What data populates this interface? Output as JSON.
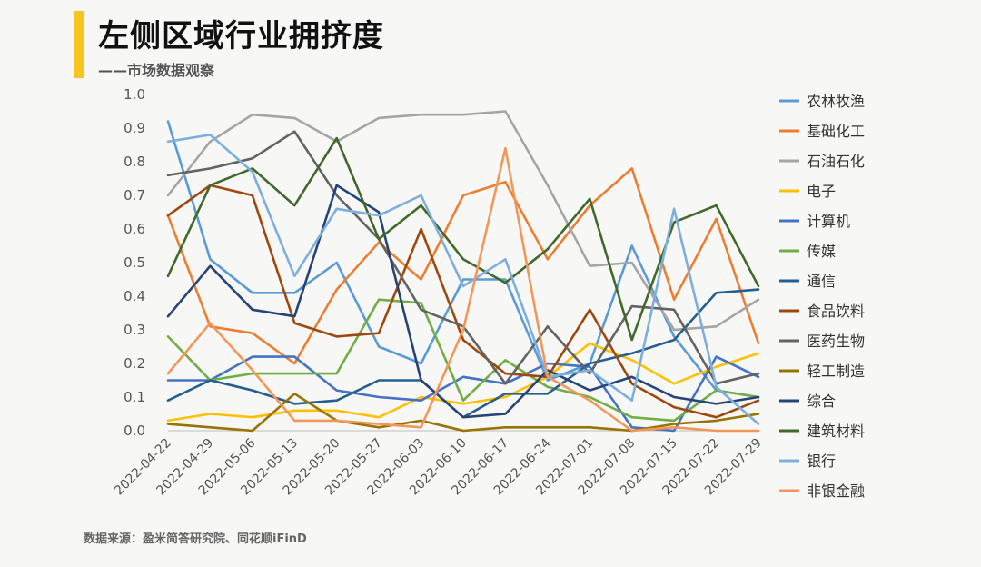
{
  "header": {
    "title": "左侧区域行业拥挤度",
    "subtitle": "——市场数据观察"
  },
  "footer": {
    "source": "数据来源：盈米简答研究院、同花顺iFinD"
  },
  "chart_data": {
    "type": "line",
    "title": "",
    "xlabel": "",
    "ylabel": "",
    "ylim": [
      0,
      1.0
    ],
    "yticks": [
      0.0,
      0.1,
      0.2,
      0.3,
      0.4,
      0.5,
      0.6,
      0.7,
      0.8,
      0.9,
      1.0
    ],
    "ytick_labels": [
      "0.0",
      "0.1",
      "0.2",
      "0.3",
      "0.4",
      "0.5",
      "0.6",
      "0.7",
      "0.8",
      "0.9",
      "1.0"
    ],
    "grid": false,
    "legend_position": "right",
    "categories": [
      "2022-04-22",
      "2022-04-29",
      "2022-05-06",
      "2022-05-13",
      "2022-05-20",
      "2022-05-27",
      "2022-06-03",
      "2022-06-10",
      "2022-06-17",
      "2022-06-24",
      "2022-07-01",
      "2022-07-08",
      "2022-07-15",
      "2022-07-22",
      "2022-07-29"
    ],
    "series": [
      {
        "name": "农林牧渔",
        "color": "#5b9bd5",
        "values": [
          0.92,
          0.51,
          0.41,
          0.41,
          0.5,
          0.25,
          0.2,
          0.45,
          0.45,
          0.15,
          0.2,
          0.55,
          0.28,
          0.12,
          0.1
        ]
      },
      {
        "name": "基础化工",
        "color": "#ed7d31",
        "values": [
          0.64,
          0.31,
          0.29,
          0.2,
          0.42,
          0.56,
          0.45,
          0.7,
          0.74,
          0.51,
          0.67,
          0.78,
          0.39,
          0.63,
          0.26
        ]
      },
      {
        "name": "石油石化",
        "color": "#a5a5a5",
        "values": [
          0.7,
          0.86,
          0.94,
          0.93,
          0.86,
          0.93,
          0.94,
          0.94,
          0.95,
          0.73,
          0.49,
          0.5,
          0.3,
          0.31,
          0.39
        ]
      },
      {
        "name": "电子",
        "color": "#ffc000",
        "values": [
          0.03,
          0.05,
          0.04,
          0.06,
          0.06,
          0.04,
          0.1,
          0.08,
          0.1,
          0.16,
          0.26,
          0.21,
          0.14,
          0.19,
          0.23
        ]
      },
      {
        "name": "计算机",
        "color": "#4472c4",
        "values": [
          0.15,
          0.15,
          0.22,
          0.22,
          0.12,
          0.1,
          0.09,
          0.16,
          0.14,
          0.2,
          0.19,
          0.01,
          0.0,
          0.22,
          0.16
        ]
      },
      {
        "name": "传媒",
        "color": "#70ad47",
        "values": [
          0.28,
          0.15,
          0.17,
          0.17,
          0.17,
          0.39,
          0.38,
          0.09,
          0.21,
          0.13,
          0.1,
          0.04,
          0.03,
          0.12,
          0.1
        ]
      },
      {
        "name": "通信",
        "color": "#255e91",
        "values": [
          0.09,
          0.15,
          0.12,
          0.08,
          0.09,
          0.15,
          0.15,
          0.04,
          0.11,
          0.11,
          0.2,
          0.23,
          0.27,
          0.41,
          0.42
        ]
      },
      {
        "name": "食品饮料",
        "color": "#9e480e",
        "values": [
          0.64,
          0.73,
          0.7,
          0.32,
          0.28,
          0.29,
          0.6,
          0.27,
          0.17,
          0.16,
          0.36,
          0.14,
          0.07,
          0.04,
          0.09
        ]
      },
      {
        "name": "医药生物",
        "color": "#636363",
        "values": [
          0.76,
          0.78,
          0.81,
          0.89,
          0.7,
          0.57,
          0.36,
          0.31,
          0.14,
          0.31,
          0.17,
          0.37,
          0.36,
          0.14,
          0.17
        ]
      },
      {
        "name": "轻工制造",
        "color": "#997300",
        "values": [
          0.02,
          0.01,
          0.0,
          0.11,
          0.03,
          0.01,
          0.03,
          0.0,
          0.01,
          0.01,
          0.01,
          0.0,
          0.02,
          0.03,
          0.05
        ]
      },
      {
        "name": "综合",
        "color": "#264478",
        "values": [
          0.34,
          0.49,
          0.36,
          0.34,
          0.73,
          0.65,
          0.15,
          0.04,
          0.05,
          0.18,
          0.12,
          0.16,
          0.1,
          0.08,
          0.1
        ]
      },
      {
        "name": "建筑材料",
        "color": "#43682b",
        "values": [
          0.46,
          0.73,
          0.78,
          0.67,
          0.87,
          0.57,
          0.67,
          0.51,
          0.44,
          0.54,
          0.69,
          0.27,
          0.62,
          0.67,
          0.43
        ]
      },
      {
        "name": "银行",
        "color": "#7cafdd",
        "values": [
          0.86,
          0.88,
          0.77,
          0.46,
          0.66,
          0.64,
          0.7,
          0.43,
          0.51,
          0.16,
          0.18,
          0.09,
          0.66,
          0.13,
          0.02
        ]
      },
      {
        "name": "非银金融",
        "color": "#f1975a",
        "values": [
          0.17,
          0.32,
          0.18,
          0.03,
          0.03,
          0.02,
          0.01,
          0.3,
          0.84,
          0.16,
          0.09,
          0.0,
          0.01,
          0.0,
          0.0
        ]
      }
    ]
  }
}
